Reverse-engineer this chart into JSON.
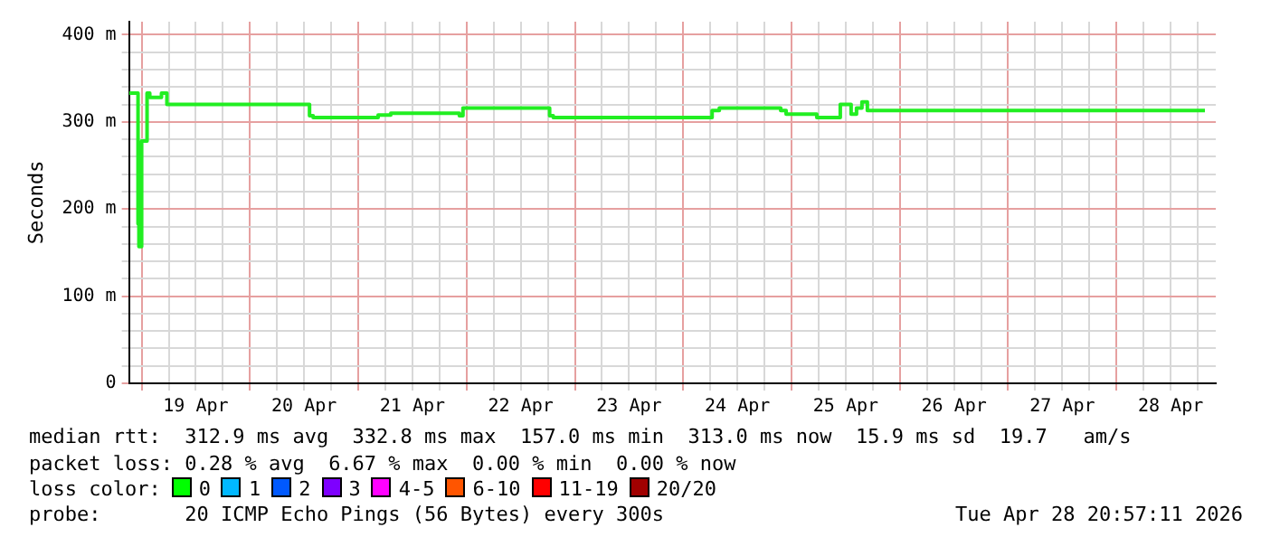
{
  "chart_data": {
    "type": "step",
    "ylabel": "Seconds",
    "grid": true,
    "legend": false,
    "marker": "none",
    "line_style": "solid",
    "x": [
      "2026-04-18T21:12",
      "2026-04-18T23:12",
      "2026-04-18T23:24",
      "2026-04-19T00:00",
      "2026-04-19T01:12",
      "2026-04-19T01:48",
      "2026-04-19T04:24",
      "2026-04-19T05:36",
      "2026-04-20T13:12",
      "2026-04-20T14:00",
      "2026-04-21T04:24",
      "2026-04-21T07:12",
      "2026-04-21T22:24",
      "2026-04-21T23:12",
      "2026-04-22T18:24",
      "2026-04-22T19:12",
      "2026-04-24T06:24",
      "2026-04-24T08:00",
      "2026-04-24T21:36",
      "2026-04-24T22:48",
      "2026-04-25T05:36",
      "2026-04-25T10:48",
      "2026-04-25T13:12",
      "2026-04-25T14:24",
      "2026-04-25T15:36",
      "2026-04-25T16:48",
      "2026-04-26T04:48",
      "2026-04-28T19:36"
    ],
    "series": [
      {
        "color": "#22ee22",
        "values": [
          333,
          333,
          183,
          157,
          278,
          333,
          328,
          333,
          320,
          307,
          305,
          308,
          310,
          307,
          316,
          307,
          305,
          313,
          316,
          313,
          309,
          305,
          320,
          309,
          316,
          323,
          313,
          313
        ]
      }
    ],
    "xlim": [
      "2026-04-18T21:12",
      "2026-04-28T22:00"
    ],
    "xticks": [
      {
        "value": "2026-04-19T00:00",
        "label": null
      },
      {
        "value": "2026-04-19T06:00",
        "label": null
      },
      {
        "value": "2026-04-19T12:00",
        "label": "19 Apr"
      },
      {
        "value": "2026-04-19T18:00",
        "label": null
      },
      {
        "value": "2026-04-20T00:00",
        "label": null
      },
      {
        "value": "2026-04-20T06:00",
        "label": null
      },
      {
        "value": "2026-04-20T12:00",
        "label": "20 Apr"
      },
      {
        "value": "2026-04-20T18:00",
        "label": null
      },
      {
        "value": "2026-04-21T00:00",
        "label": null
      },
      {
        "value": "2026-04-21T06:00",
        "label": null
      },
      {
        "value": "2026-04-21T12:00",
        "label": "21 Apr"
      },
      {
        "value": "2026-04-21T18:00",
        "label": null
      },
      {
        "value": "2026-04-22T00:00",
        "label": null
      },
      {
        "value": "2026-04-22T06:00",
        "label": null
      },
      {
        "value": "2026-04-22T12:00",
        "label": "22 Apr"
      },
      {
        "value": "2026-04-22T18:00",
        "label": null
      },
      {
        "value": "2026-04-23T00:00",
        "label": null
      },
      {
        "value": "2026-04-23T06:00",
        "label": null
      },
      {
        "value": "2026-04-23T12:00",
        "label": "23 Apr"
      },
      {
        "value": "2026-04-23T18:00",
        "label": null
      },
      {
        "value": "2026-04-24T00:00",
        "label": null
      },
      {
        "value": "2026-04-24T06:00",
        "label": null
      },
      {
        "value": "2026-04-24T12:00",
        "label": "24 Apr"
      },
      {
        "value": "2026-04-24T18:00",
        "label": null
      },
      {
        "value": "2026-04-25T00:00",
        "label": null
      },
      {
        "value": "2026-04-25T06:00",
        "label": null
      },
      {
        "value": "2026-04-25T12:00",
        "label": "25 Apr"
      },
      {
        "value": "2026-04-25T18:00",
        "label": null
      },
      {
        "value": "2026-04-26T00:00",
        "label": null
      },
      {
        "value": "2026-04-26T06:00",
        "label": null
      },
      {
        "value": "2026-04-26T12:00",
        "label": "26 Apr"
      },
      {
        "value": "2026-04-26T18:00",
        "label": null
      },
      {
        "value": "2026-04-27T00:00",
        "label": null
      },
      {
        "value": "2026-04-27T06:00",
        "label": null
      },
      {
        "value": "2026-04-27T12:00",
        "label": "27 Apr"
      },
      {
        "value": "2026-04-27T18:00",
        "label": null
      },
      {
        "value": "2026-04-28T00:00",
        "label": null
      },
      {
        "value": "2026-04-28T06:00",
        "label": null
      },
      {
        "value": "2026-04-28T12:00",
        "label": "28 Apr"
      },
      {
        "value": "2026-04-28T18:00",
        "label": null
      }
    ],
    "ylim": [
      0,
      415
    ],
    "yticks": [
      {
        "value": 0,
        "label": "0"
      },
      {
        "value": 20,
        "label": null
      },
      {
        "value": 40,
        "label": null
      },
      {
        "value": 60,
        "label": null
      },
      {
        "value": 80,
        "label": null
      },
      {
        "value": 100,
        "label": "100 m"
      },
      {
        "value": 120,
        "label": null
      },
      {
        "value": 140,
        "label": null
      },
      {
        "value": 160,
        "label": null
      },
      {
        "value": 180,
        "label": null
      },
      {
        "value": 200,
        "label": "200 m"
      },
      {
        "value": 220,
        "label": null
      },
      {
        "value": 240,
        "label": null
      },
      {
        "value": 260,
        "label": null
      },
      {
        "value": 280,
        "label": null
      },
      {
        "value": 300,
        "label": "300 m"
      },
      {
        "value": 320,
        "label": null
      },
      {
        "value": 340,
        "label": null
      },
      {
        "value": 360,
        "label": null
      },
      {
        "value": 380,
        "label": null
      },
      {
        "value": 400,
        "label": "400 m"
      }
    ],
    "annotations": [
      "median rtt:  312.9 ms avg  332.8 ms max  157.0 ms min  313.0 ms now  15.9 ms sd  19.7   am/s",
      "packet loss: 0.28 % avg  6.67 % max  0.00 % min  0.00 % now",
      "loss color:",
      "0",
      "1",
      "2",
      "3",
      "4-5",
      "6-10",
      "11-19",
      "20/20",
      "probe:       20 ICMP Echo Pings (56 Bytes) every 300s",
      "Tue Apr 28 20:57:11 2026"
    ]
  }
}
